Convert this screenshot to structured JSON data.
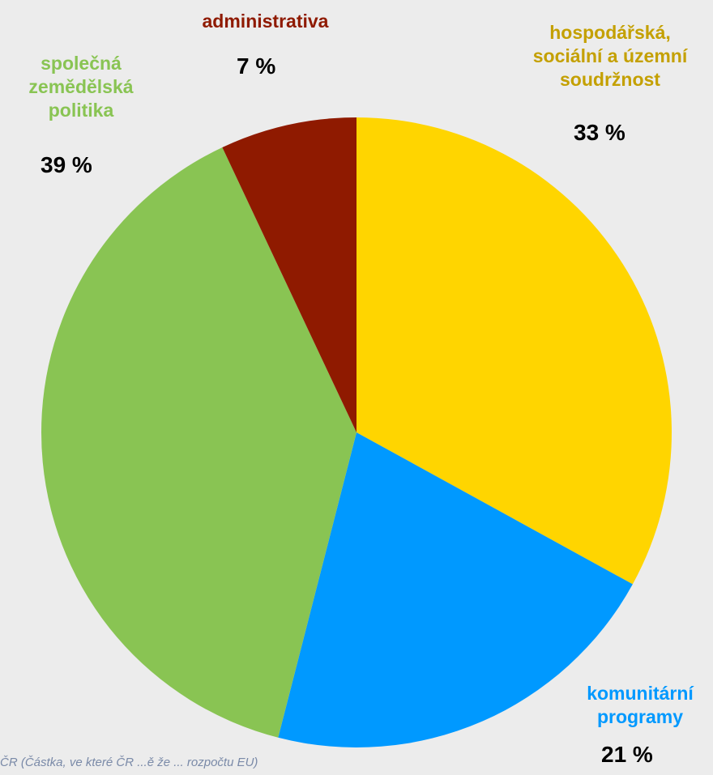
{
  "chart_data": {
    "type": "pie",
    "start_angle_deg": 0,
    "direction": "clockwise",
    "slices": [
      {
        "label": "hospodářská,\nsociální a územní\nsoudržnost",
        "value": 33,
        "value_label": "33 %",
        "color": "#FFD500"
      },
      {
        "label": "komunitární\nprogramy",
        "value": 21,
        "value_label": "21 %",
        "color": "#0099FF"
      },
      {
        "label": "společná\nzemědělská\npolitika",
        "value": 39,
        "value_label": "39 %",
        "color": "#89C453"
      },
      {
        "label": "administrativa",
        "value": 7,
        "value_label": "7 %",
        "color": "#8F1A00"
      }
    ]
  },
  "footnote": "ČR (Částka, ve které ČR ...ě že ... rozpočtu EU)"
}
